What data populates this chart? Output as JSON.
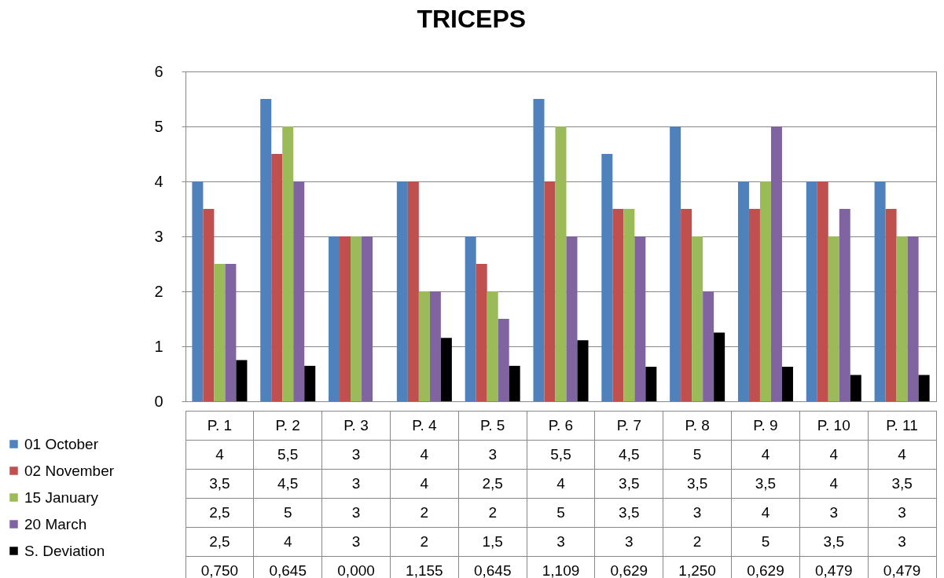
{
  "chart_data": {
    "type": "bar",
    "title": "TRICEPS",
    "categories": [
      "P. 1",
      "P. 2",
      "P. 3",
      "P. 4",
      "P. 5",
      "P. 6",
      "P. 7",
      "P. 8",
      "P. 9",
      "P. 10",
      "P. 11"
    ],
    "series": [
      {
        "name": "01 October",
        "color": "#4f81bd",
        "values": [
          4,
          5.5,
          3,
          4,
          3,
          5.5,
          4.5,
          5,
          4,
          4,
          4
        ],
        "value_labels": [
          "4",
          "5,5",
          "3",
          "4",
          "3",
          "5,5",
          "4,5",
          "5",
          "4",
          "4",
          "4"
        ]
      },
      {
        "name": "02 November",
        "color": "#c0504d",
        "values": [
          3.5,
          4.5,
          3,
          4,
          2.5,
          4,
          3.5,
          3.5,
          3.5,
          4,
          3.5
        ],
        "value_labels": [
          "3,5",
          "4,5",
          "3",
          "4",
          "2,5",
          "4",
          "3,5",
          "3,5",
          "3,5",
          "4",
          "3,5"
        ]
      },
      {
        "name": "15 January",
        "color": "#9bbb59",
        "values": [
          2.5,
          5,
          3,
          2,
          2,
          5,
          3.5,
          3,
          4,
          3,
          3
        ],
        "value_labels": [
          "2,5",
          "5",
          "3",
          "2",
          "2",
          "5",
          "3,5",
          "3",
          "4",
          "3",
          "3"
        ]
      },
      {
        "name": "20 March",
        "color": "#8064a2",
        "values": [
          2.5,
          4,
          3,
          2,
          1.5,
          3,
          3,
          2,
          5,
          3.5,
          3
        ],
        "value_labels": [
          "2,5",
          "4",
          "3",
          "2",
          "1,5",
          "3",
          "3",
          "2",
          "5",
          "3,5",
          "3"
        ]
      },
      {
        "name": "S. Deviation",
        "color": "#000000",
        "values": [
          0.75,
          0.645,
          0,
          1.155,
          0.645,
          1.109,
          0.629,
          1.25,
          0.629,
          0.479,
          0.479
        ],
        "value_labels": [
          "0,750",
          "0,645",
          "0,000",
          "1,155",
          "0,645",
          "1,109",
          "0,629",
          "1,250",
          "0,629",
          "0,479",
          "0,479"
        ]
      }
    ],
    "ylim": [
      0,
      6
    ],
    "yticks": [
      0,
      1,
      2,
      3,
      4,
      5,
      6
    ],
    "grid": "y",
    "legend": "bottom left"
  }
}
